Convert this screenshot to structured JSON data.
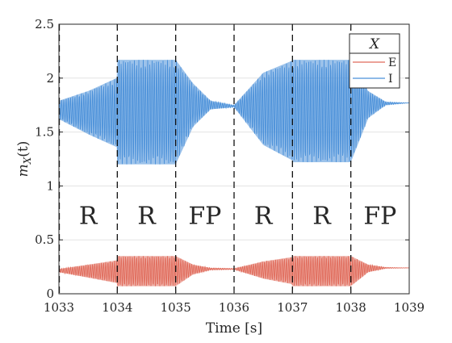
{
  "chart_data": {
    "type": "line",
    "title": "",
    "xlabel": "Time [s]",
    "ylabel_parts": {
      "m": "m",
      "sub": "X",
      "arg": "(t)"
    },
    "xlim": [
      1033,
      1039
    ],
    "ylim": [
      0,
      2.5
    ],
    "xticks": [
      "1033",
      "1034",
      "1035",
      "1036",
      "1037",
      "1038",
      "1039"
    ],
    "yticks": [
      "0",
      "0.5",
      "1",
      "1.5",
      "2",
      "2.5"
    ],
    "grid": "horizontal",
    "legend": {
      "title": "X",
      "placement": "top-right",
      "entries": [
        {
          "name": "E",
          "color": "#e06b5b"
        },
        {
          "name": "I",
          "color": "#4a90d9"
        }
      ]
    },
    "regime_boundaries": [
      1034,
      1035,
      1036,
      1037,
      1038
    ],
    "regimes": [
      {
        "label": "R",
        "x": 1033.5
      },
      {
        "label": "R",
        "x": 1034.5
      },
      {
        "label": "FP",
        "x": 1035.5
      },
      {
        "label": "R",
        "x": 1036.5
      },
      {
        "label": "R",
        "x": 1037.5
      },
      {
        "label": "FP",
        "x": 1038.5
      }
    ],
    "regime_label_y": 0.73,
    "series": [
      {
        "name": "E",
        "color": "#e06b5b",
        "envelope": [
          {
            "x": 1033.0,
            "low": 0.2,
            "high": 0.23
          },
          {
            "x": 1033.5,
            "low": 0.15,
            "high": 0.27
          },
          {
            "x": 1033.99,
            "low": 0.1,
            "high": 0.31
          },
          {
            "x": 1034.0,
            "low": 0.07,
            "high": 0.35
          },
          {
            "x": 1035.0,
            "low": 0.07,
            "high": 0.35
          },
          {
            "x": 1035.3,
            "low": 0.18,
            "high": 0.27
          },
          {
            "x": 1035.6,
            "low": 0.22,
            "high": 0.24
          },
          {
            "x": 1036.0,
            "low": 0.225,
            "high": 0.235
          },
          {
            "x": 1036.5,
            "low": 0.14,
            "high": 0.3
          },
          {
            "x": 1036.99,
            "low": 0.09,
            "high": 0.34
          },
          {
            "x": 1037.0,
            "low": 0.07,
            "high": 0.35
          },
          {
            "x": 1038.0,
            "low": 0.07,
            "high": 0.35
          },
          {
            "x": 1038.3,
            "low": 0.2,
            "high": 0.27
          },
          {
            "x": 1038.6,
            "low": 0.235,
            "high": 0.245
          },
          {
            "x": 1039.0,
            "low": 0.24,
            "high": 0.24
          }
        ]
      },
      {
        "name": "I",
        "color": "#4a90d9",
        "envelope": [
          {
            "x": 1033.0,
            "low": 1.62,
            "high": 1.79
          },
          {
            "x": 1033.5,
            "low": 1.48,
            "high": 1.88
          },
          {
            "x": 1033.99,
            "low": 1.36,
            "high": 2.0
          },
          {
            "x": 1034.0,
            "low": 1.2,
            "high": 2.17
          },
          {
            "x": 1035.0,
            "low": 1.2,
            "high": 2.17
          },
          {
            "x": 1035.3,
            "low": 1.55,
            "high": 1.95
          },
          {
            "x": 1035.6,
            "low": 1.71,
            "high": 1.79
          },
          {
            "x": 1036.0,
            "low": 1.73,
            "high": 1.75
          },
          {
            "x": 1036.5,
            "low": 1.38,
            "high": 2.05
          },
          {
            "x": 1036.99,
            "low": 1.24,
            "high": 2.16
          },
          {
            "x": 1037.0,
            "low": 1.22,
            "high": 2.17
          },
          {
            "x": 1038.0,
            "low": 1.22,
            "high": 2.17
          },
          {
            "x": 1038.3,
            "low": 1.63,
            "high": 1.88
          },
          {
            "x": 1038.6,
            "low": 1.75,
            "high": 1.78
          },
          {
            "x": 1039.0,
            "low": 1.77,
            "high": 1.77
          }
        ]
      }
    ]
  }
}
